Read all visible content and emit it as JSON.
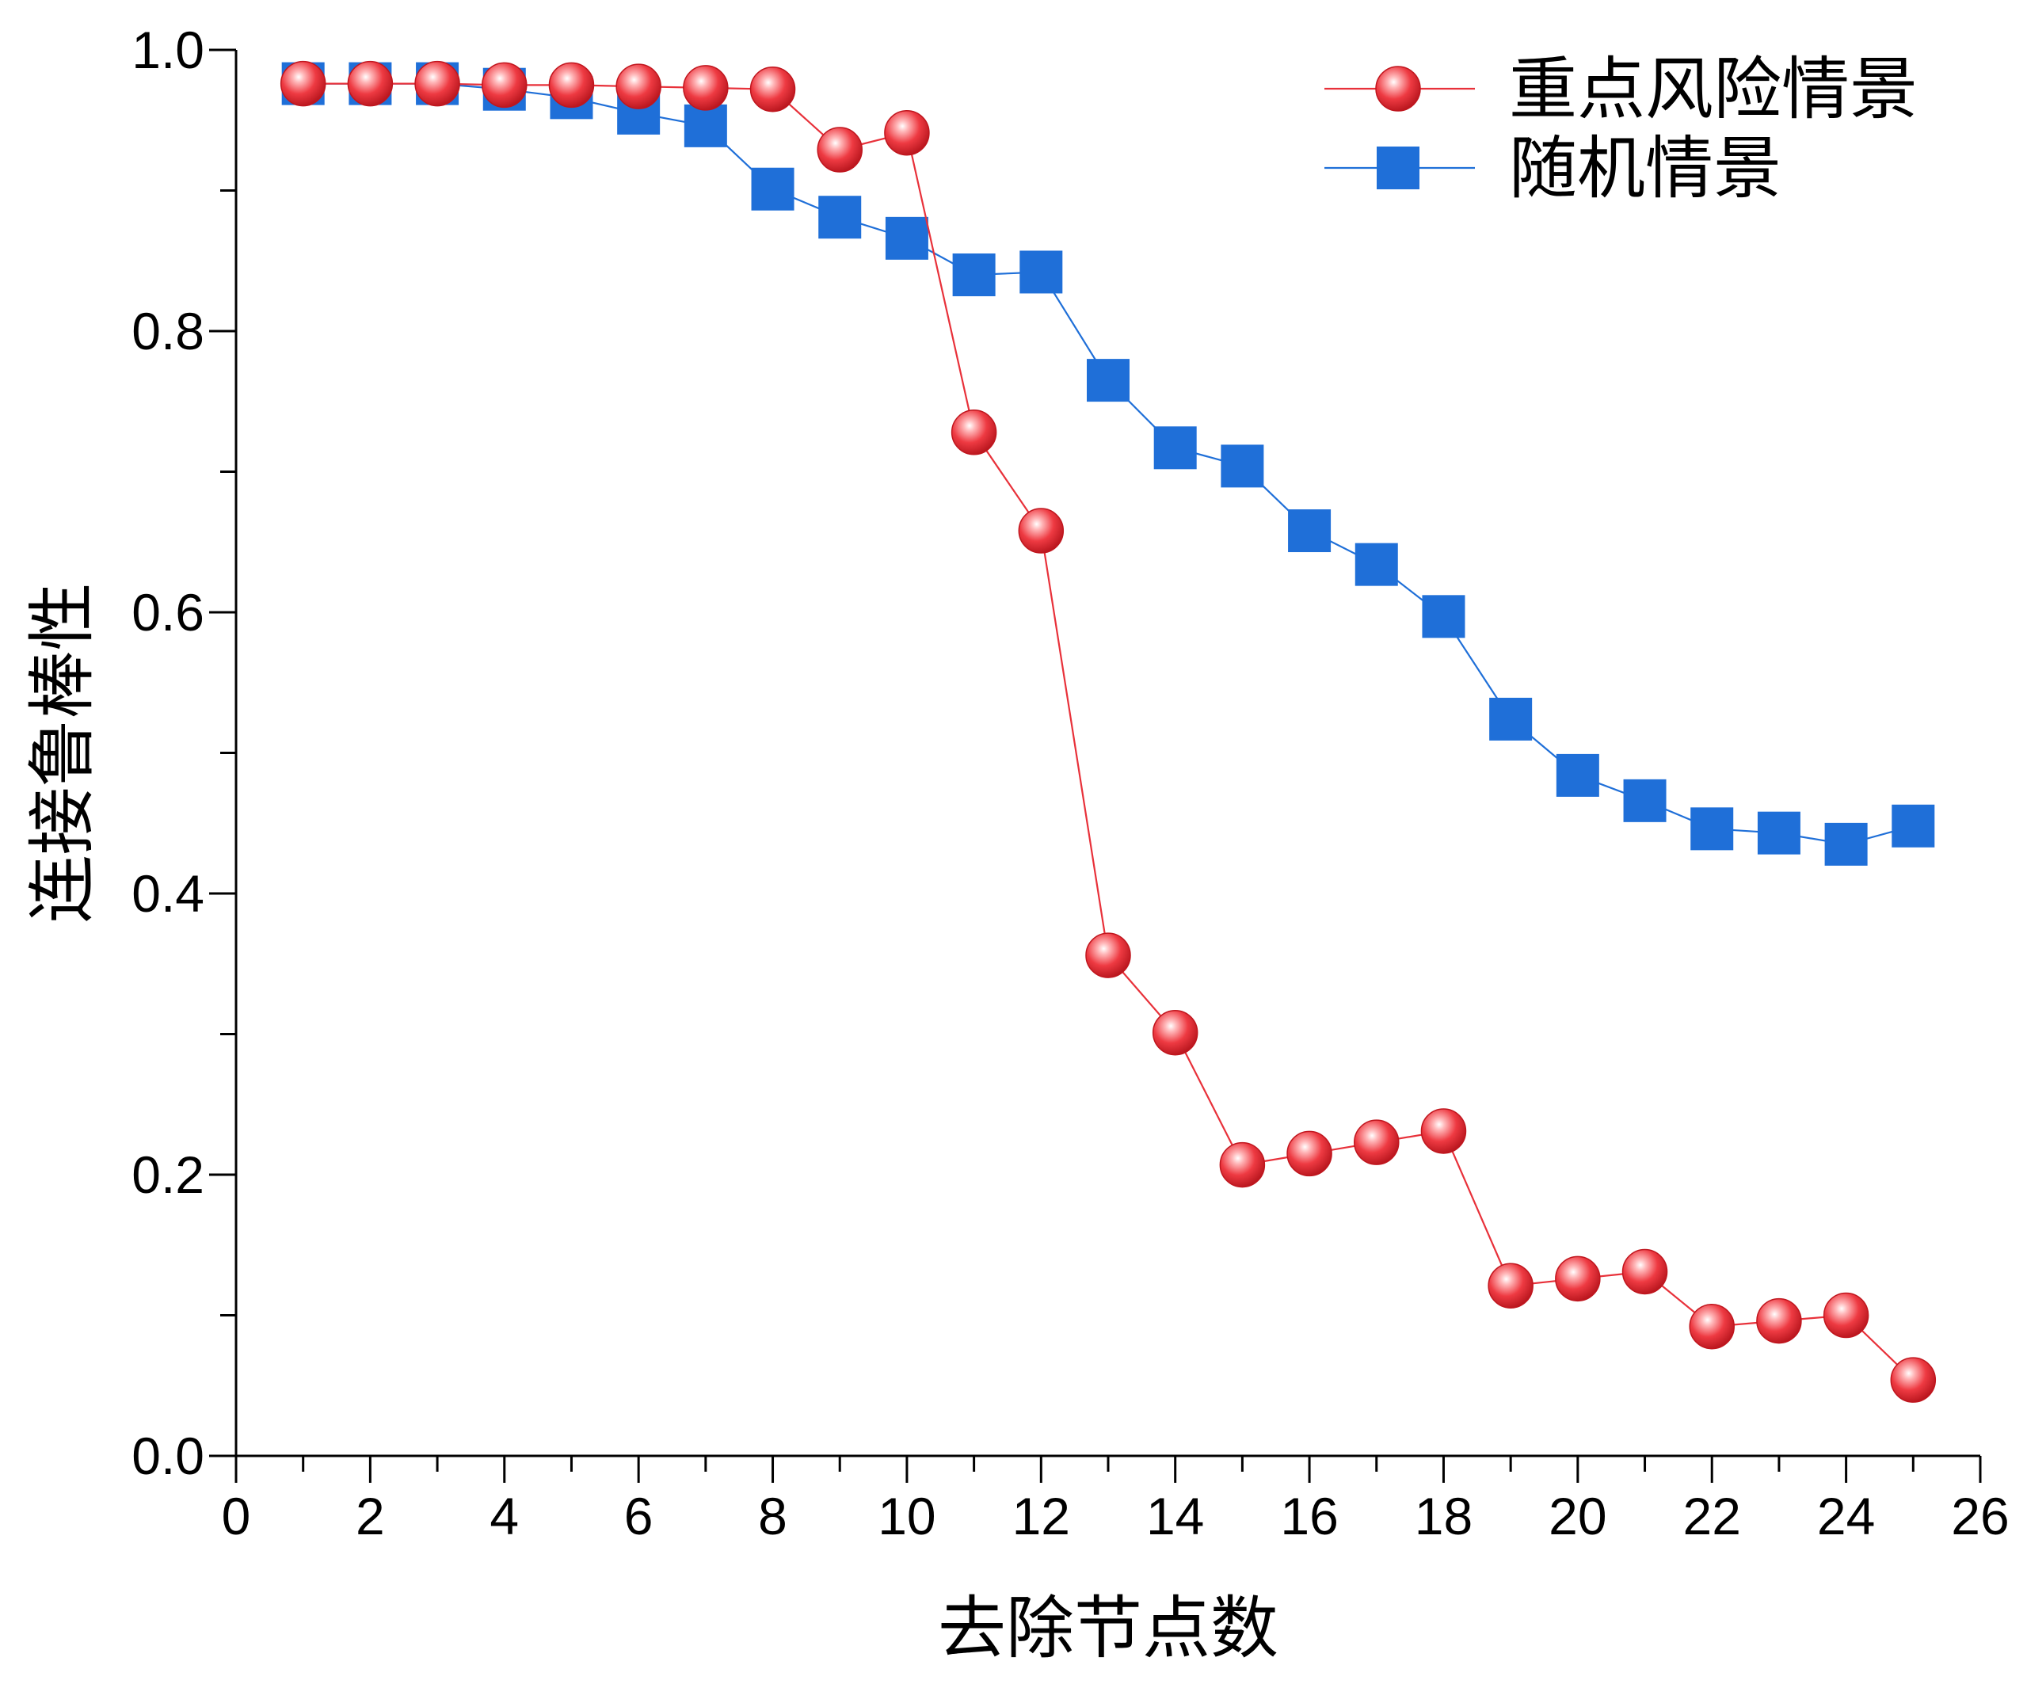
{
  "chart_data": {
    "type": "line",
    "xlabel": "去除节点数",
    "ylabel": "连接鲁棒性",
    "xlim": [
      0,
      26
    ],
    "ylim": [
      0,
      1.0
    ],
    "x_ticks": [
      0,
      2,
      4,
      6,
      8,
      10,
      12,
      14,
      16,
      18,
      20,
      22,
      24,
      26
    ],
    "x_tick_labels": [
      "0",
      "2",
      "4",
      "6",
      "8",
      "10",
      "12",
      "14",
      "16",
      "18",
      "20",
      "22",
      "24",
      "26"
    ],
    "y_ticks": [
      0.0,
      0.2,
      0.4,
      0.6,
      0.8,
      1.0
    ],
    "y_tick_labels": [
      "0.0",
      "0.2",
      "0.4",
      "0.6",
      "0.8",
      "1.0"
    ],
    "grid": false,
    "legend_position": "top-right",
    "x": [
      1,
      2,
      3,
      4,
      5,
      6,
      7,
      8,
      9,
      10,
      11,
      12,
      13,
      14,
      15,
      16,
      17,
      18,
      19,
      20,
      21,
      22,
      23,
      24,
      25
    ],
    "series": [
      {
        "name": "重点风险情景",
        "color": "#e8313a",
        "marker": "circle",
        "values": [
          0.976,
          0.976,
          0.976,
          0.975,
          0.975,
          0.974,
          0.973,
          0.972,
          0.929,
          0.941,
          0.728,
          0.658,
          0.356,
          0.301,
          0.207,
          0.215,
          0.223,
          0.231,
          0.121,
          0.126,
          0.131,
          0.092,
          0.096,
          0.1,
          0.054
        ]
      },
      {
        "name": "随机情景",
        "color": "#1f6fd8",
        "marker": "square",
        "values": [
          0.976,
          0.976,
          0.976,
          0.972,
          0.966,
          0.955,
          0.946,
          0.901,
          0.881,
          0.866,
          0.84,
          0.842,
          0.765,
          0.717,
          0.704,
          0.658,
          0.634,
          0.597,
          0.524,
          0.484,
          0.466,
          0.446,
          0.443,
          0.435,
          0.448
        ]
      }
    ]
  }
}
